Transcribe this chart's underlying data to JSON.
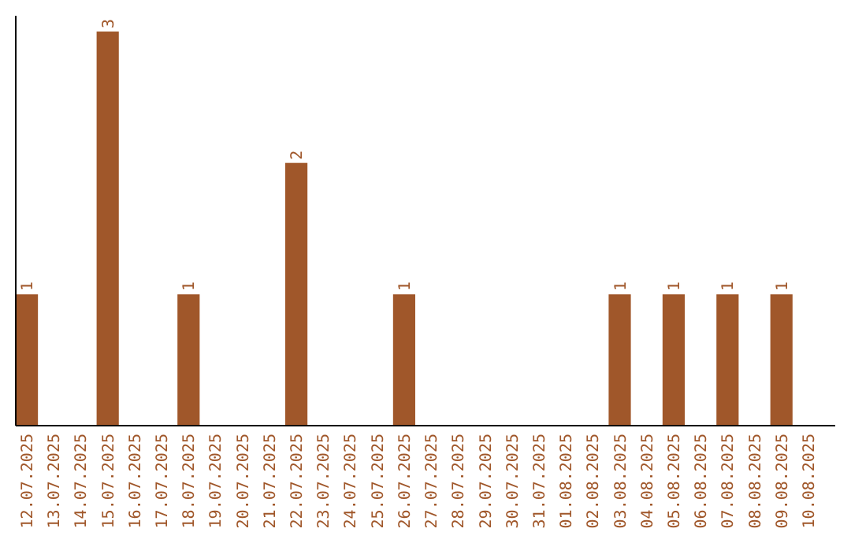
{
  "chart_data": {
    "type": "bar",
    "categories": [
      "12.07.2025",
      "13.07.2025",
      "14.07.2025",
      "15.07.2025",
      "16.07.2025",
      "17.07.2025",
      "18.07.2025",
      "19.07.2025",
      "20.07.2025",
      "21.07.2025",
      "22.07.2025",
      "23.07.2025",
      "24.07.2025",
      "25.07.2025",
      "26.07.2025",
      "27.07.2025",
      "28.07.2025",
      "29.07.2025",
      "30.07.2025",
      "31.07.2025",
      "01.08.2025",
      "02.08.2025",
      "03.08.2025",
      "04.08.2025",
      "05.08.2025",
      "06.08.2025",
      "07.08.2025",
      "08.08.2025",
      "09.08.2025",
      "10.08.2025"
    ],
    "values": [
      1,
      0,
      0,
      3,
      0,
      0,
      1,
      0,
      0,
      0,
      2,
      0,
      0,
      0,
      1,
      0,
      0,
      0,
      0,
      0,
      0,
      0,
      1,
      0,
      1,
      0,
      1,
      0,
      1,
      0
    ],
    "value_labels": [
      "1",
      null,
      null,
      "3",
      null,
      null,
      "1",
      null,
      null,
      null,
      "2",
      null,
      null,
      null,
      "1",
      null,
      null,
      null,
      null,
      null,
      null,
      null,
      "1",
      null,
      "1",
      null,
      "1",
      null,
      "1",
      null
    ],
    "color": "#a0572a"
  }
}
